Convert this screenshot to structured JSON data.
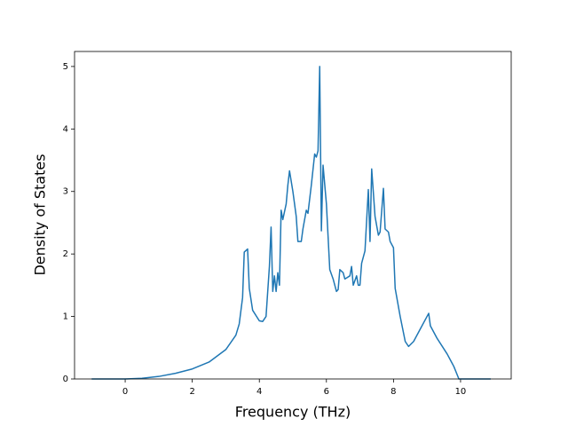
{
  "chart_data": {
    "type": "line",
    "x_label": "Frequency (THz)",
    "y_label": "Density of States",
    "color": "#1f77b4",
    "x": [
      -1,
      0,
      0.5,
      1,
      1.5,
      2,
      2.5,
      3,
      3.3,
      3.4,
      3.5,
      3.55,
      3.65,
      3.7,
      3.8,
      4.0,
      4.1,
      4.2,
      4.3,
      4.35,
      4.4,
      4.45,
      4.5,
      4.55,
      4.6,
      4.65,
      4.7,
      4.8,
      4.85,
      4.9,
      5.0,
      5.1,
      5.15,
      5.25,
      5.3,
      5.4,
      5.45,
      5.55,
      5.65,
      5.7,
      5.75,
      5.8,
      5.85,
      5.9,
      6.0,
      6.1,
      6.2,
      6.3,
      6.35,
      6.4,
      6.5,
      6.55,
      6.7,
      6.75,
      6.8,
      6.9,
      6.95,
      7.0,
      7.05,
      7.15,
      7.25,
      7.3,
      7.35,
      7.45,
      7.55,
      7.6,
      7.7,
      7.75,
      7.85,
      7.9,
      8.0,
      8.05,
      8.2,
      8.35,
      8.45,
      8.6,
      8.8,
      9.0,
      9.05,
      9.1,
      9.3,
      9.6,
      9.8,
      9.95,
      10.9
    ],
    "values": [
      0,
      0,
      0.01,
      0.04,
      0.09,
      0.16,
      0.27,
      0.47,
      0.7,
      0.88,
      1.3,
      2.03,
      2.08,
      1.45,
      1.1,
      0.93,
      0.92,
      1.0,
      1.8,
      2.43,
      1.4,
      1.65,
      1.4,
      1.7,
      1.5,
      2.7,
      2.55,
      2.8,
      3.1,
      3.33,
      3.0,
      2.6,
      2.2,
      2.2,
      2.4,
      2.7,
      2.65,
      3.1,
      3.6,
      3.55,
      3.65,
      5.0,
      2.37,
      3.42,
      2.8,
      1.75,
      1.6,
      1.4,
      1.43,
      1.75,
      1.7,
      1.6,
      1.65,
      1.8,
      1.5,
      1.65,
      1.5,
      1.5,
      1.85,
      2.05,
      3.03,
      2.2,
      3.36,
      2.6,
      2.3,
      2.35,
      3.05,
      2.4,
      2.35,
      2.2,
      2.1,
      1.45,
      1.0,
      0.6,
      0.52,
      0.6,
      0.8,
      1.0,
      1.05,
      0.85,
      0.65,
      0.4,
      0.2,
      0,
      0
    ],
    "xlim": [
      -1.51,
      11.51
    ],
    "ylim": [
      0,
      5.24
    ],
    "xticks": [
      0,
      2,
      4,
      6,
      8,
      10
    ],
    "yticks": [
      0,
      1,
      2,
      3,
      4,
      5
    ]
  }
}
